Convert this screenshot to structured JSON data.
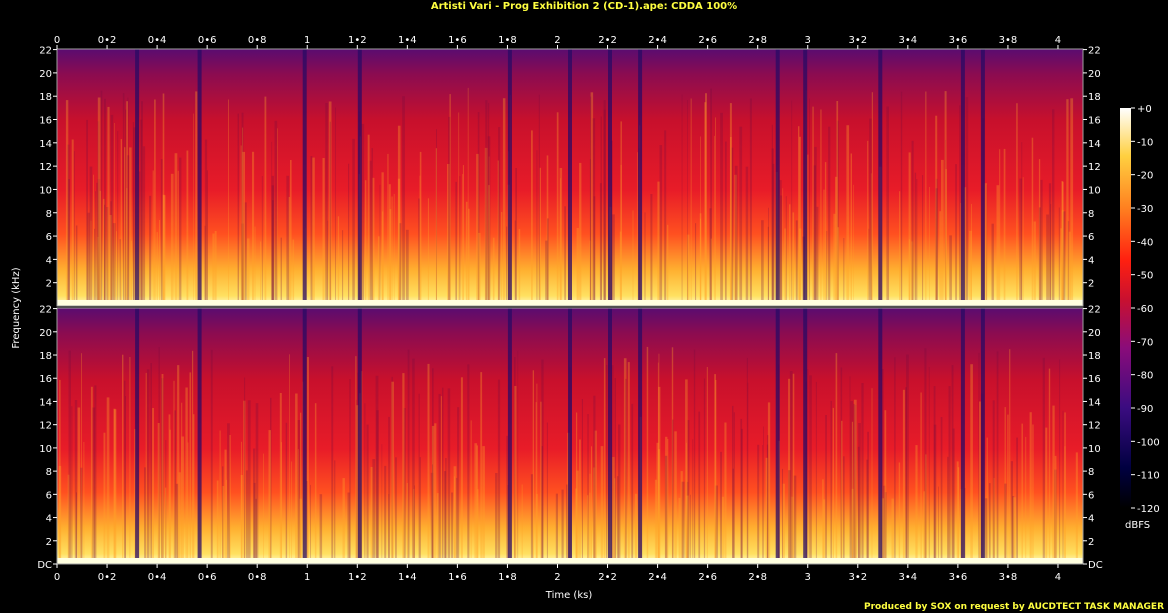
{
  "title": "Artisti Vari - Prog Exhibition 2  (CD-1).ape: CDDA 100%",
  "footer": "Produced by SOX on request by AUCDTECT TASK MANAGER",
  "chart_data": {
    "type": "heatmap",
    "title": "Artisti Vari - Prog Exhibition 2  (CD-1).ape: CDDA 100%",
    "xlabel": "Time (ks)",
    "ylabel": "Frequency (kHz)",
    "xlim": [
      0,
      4.1
    ],
    "ylim": [
      0,
      22.05
    ],
    "x_ticks": [
      0,
      0.2,
      0.4,
      0.6,
      0.8,
      1,
      1.2,
      1.4,
      1.6,
      1.8,
      2,
      2.2,
      2.4,
      2.6,
      2.8,
      3,
      3.2,
      3.4,
      3.6,
      3.8,
      4
    ],
    "x_tick_labels": [
      "0",
      "0•2",
      "0•4",
      "0•6",
      "0•8",
      "1",
      "1•2",
      "1•4",
      "1•6",
      "1•8",
      "2",
      "2•2",
      "2•4",
      "2•6",
      "2•8",
      "3",
      "3•2",
      "3•4",
      "3•6",
      "3•8",
      "4"
    ],
    "y_ticks": [
      0,
      2,
      4,
      6,
      8,
      10,
      12,
      14,
      16,
      18,
      20,
      22
    ],
    "y_tick_labels": [
      "DC",
      "2",
      "4",
      "6",
      "8",
      "10",
      "12",
      "14",
      "16",
      "18",
      "20",
      "22"
    ],
    "channels": 2,
    "colorbar": {
      "label": "dBFS",
      "ticks": [
        0,
        -10,
        -20,
        -30,
        -40,
        -50,
        -60,
        -70,
        -80,
        -90,
        -100,
        -110,
        -120
      ],
      "tick_labels": [
        "+0",
        "-10",
        "-20",
        "-30",
        "-40",
        "-50",
        "-60",
        "-70",
        "-80",
        "-90",
        "-100",
        "-110",
        "-120"
      ],
      "range": [
        -120,
        0
      ]
    },
    "track_boundaries_ks": [
      0.32,
      0.57,
      0.99,
      1.21,
      1.81,
      2.05,
      2.21,
      2.33,
      2.88,
      2.99,
      3.29,
      3.62,
      3.7
    ],
    "colors": {
      "background": "#000000",
      "title": "#ffff40",
      "axis": "#ffffff",
      "plot_border": "#a0a0a0"
    }
  }
}
